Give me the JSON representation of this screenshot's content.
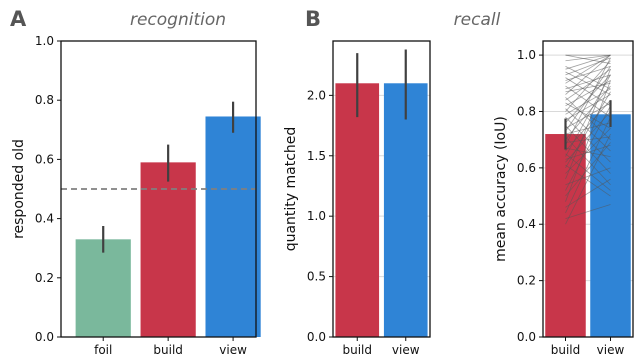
{
  "figure": {
    "panel_a_letter": "A",
    "panel_b_letter": "B"
  },
  "chart_data": [
    {
      "type": "bar",
      "title": "recognition",
      "ylabel": "responded old",
      "xlabel": "",
      "categories": [
        "foil",
        "build",
        "view"
      ],
      "values": [
        0.33,
        0.59,
        0.745
      ],
      "error_bars": [
        [
          0.285,
          0.375
        ],
        [
          0.525,
          0.65
        ],
        [
          0.69,
          0.795
        ]
      ],
      "colors": [
        "#7ab89c",
        "#c8364a",
        "#2f84d6"
      ],
      "ylim": [
        0,
        1.0
      ],
      "yticks": [
        "0.0",
        "0.2",
        "0.4",
        "0.6",
        "0.8",
        "1.0"
      ],
      "reference_line": {
        "y": 0.5,
        "style": "dashed"
      },
      "grid": false
    },
    {
      "type": "bar",
      "title": "",
      "ylabel": "quantity matched",
      "xlabel": "",
      "categories": [
        "build",
        "view"
      ],
      "values": [
        2.1,
        2.1
      ],
      "error_bars": [
        [
          1.82,
          2.35
        ],
        [
          1.8,
          2.38
        ]
      ],
      "colors": [
        "#c8364a",
        "#2f84d6"
      ],
      "ylim": [
        0,
        2.45
      ],
      "yticks": [
        "0.0",
        "0.5",
        "1.0",
        "1.5",
        "2.0"
      ],
      "grid": true
    },
    {
      "type": "bar",
      "title": "recall",
      "ylabel": "mean accuracy (IoU)",
      "xlabel": "",
      "categories": [
        "build",
        "view"
      ],
      "values": [
        0.72,
        0.79
      ],
      "error_bars": [
        [
          0.665,
          0.775
        ],
        [
          0.745,
          0.84
        ]
      ],
      "colors": [
        "#c8364a",
        "#2f84d6"
      ],
      "ylim": [
        0,
        1.05
      ],
      "yticks": [
        "0.0",
        "0.2",
        "0.4",
        "0.6",
        "0.8",
        "1.0"
      ],
      "grid": true,
      "paired_lines": [
        [
          1.0,
          1.0
        ],
        [
          1.0,
          0.97
        ],
        [
          0.98,
          1.0
        ],
        [
          0.96,
          0.88
        ],
        [
          0.95,
          1.0
        ],
        [
          0.94,
          0.86
        ],
        [
          0.93,
          0.99
        ],
        [
          0.92,
          0.82
        ],
        [
          0.91,
          0.96
        ],
        [
          0.9,
          1.0
        ],
        [
          0.89,
          0.78
        ],
        [
          0.88,
          0.93
        ],
        [
          0.87,
          0.9
        ],
        [
          0.86,
          1.0
        ],
        [
          0.85,
          0.7
        ],
        [
          0.84,
          0.95
        ],
        [
          0.83,
          0.74
        ],
        [
          0.82,
          0.91
        ],
        [
          0.81,
          0.66
        ],
        [
          0.8,
          0.98
        ],
        [
          0.79,
          0.88
        ],
        [
          0.78,
          0.62
        ],
        [
          0.77,
          0.86
        ],
        [
          0.76,
          0.93
        ],
        [
          0.75,
          0.58
        ],
        [
          0.74,
          0.83
        ],
        [
          0.73,
          0.96
        ],
        [
          0.72,
          0.76
        ],
        [
          0.71,
          0.54
        ],
        [
          0.7,
          0.89
        ],
        [
          0.69,
          0.71
        ],
        [
          0.68,
          0.99
        ],
        [
          0.67,
          0.64
        ],
        [
          0.66,
          0.84
        ],
        [
          0.65,
          0.52
        ],
        [
          0.64,
          0.93
        ],
        [
          0.63,
          0.68
        ],
        [
          0.62,
          0.8
        ],
        [
          0.61,
          0.5
        ],
        [
          0.6,
          0.87
        ],
        [
          0.58,
          0.74
        ],
        [
          0.56,
          0.95
        ],
        [
          0.54,
          0.6
        ],
        [
          0.52,
          0.82
        ],
        [
          0.5,
          0.69
        ],
        [
          0.48,
          0.91
        ],
        [
          0.46,
          0.56
        ],
        [
          0.44,
          0.78
        ],
        [
          0.42,
          0.47
        ],
        [
          0.4,
          0.72
        ]
      ]
    }
  ]
}
